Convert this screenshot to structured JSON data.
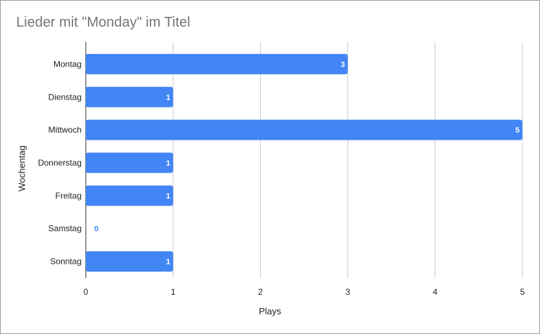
{
  "chart_data": {
    "type": "bar",
    "orientation": "horizontal",
    "title": "Lieder mit \"Monday\" im Titel",
    "xlabel": "Plays",
    "ylabel": "Wochentag",
    "categories": [
      "Montag",
      "Dienstag",
      "Mittwoch",
      "Donnerstag",
      "Freitag",
      "Samstag",
      "Sonntag"
    ],
    "values": [
      3,
      1,
      5,
      1,
      1,
      0,
      1
    ],
    "xlim": [
      0,
      5
    ],
    "xticks": [
      "0",
      "1",
      "2",
      "3",
      "4",
      "5"
    ],
    "grid": true,
    "bar_color": "#4285f4",
    "label_color_inside": "#ffffff",
    "label_color_outside": "#4285f4"
  }
}
